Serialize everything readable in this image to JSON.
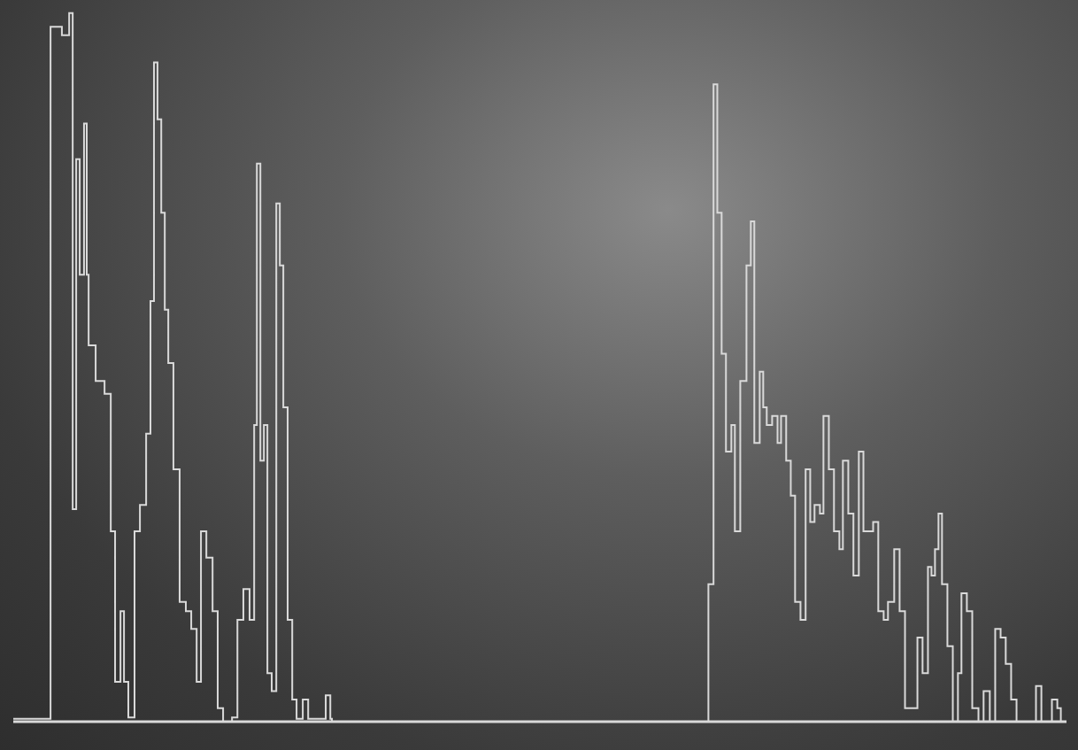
{
  "chart_data": {
    "type": "line",
    "line_style": "step",
    "color": "#d9d9d9",
    "grid": false,
    "tick_labels": false,
    "xlim": [
      0,
      39
    ],
    "ylim": [
      0,
      100
    ],
    "xticks": [
      2,
      3,
      4,
      5,
      6,
      7,
      8,
      9,
      10,
      11,
      12,
      13,
      14,
      15,
      16,
      17,
      18,
      19,
      20,
      21,
      22,
      23,
      24,
      25,
      26,
      27,
      28,
      29,
      30,
      31,
      32,
      33,
      34,
      35,
      36,
      37,
      38,
      39
    ],
    "x": [
      0,
      1.38,
      1.8,
      2.07,
      2.2,
      2.33,
      2.46,
      2.62,
      2.72,
      2.79,
      3.05,
      3.38,
      3.61,
      3.77,
      3.97,
      4.1,
      4.26,
      4.49,
      4.69,
      4.92,
      5.08,
      5.21,
      5.34,
      5.48,
      5.61,
      5.74,
      5.93,
      6.16,
      6.39,
      6.59,
      6.79,
      6.95,
      7.15,
      7.38,
      7.57,
      7.77,
      8.1,
      8.3,
      8.52,
      8.75,
      8.92,
      9.02,
      9.15,
      9.28,
      9.41,
      9.57,
      9.74,
      9.87,
      10,
      10.16,
      10.33,
      10.49,
      10.72,
      10.92,
      11.57,
      11.74,
      11.8,
      25.64,
      25.74,
      25.93,
      26.07,
      26.23,
      26.39,
      26.59,
      26.72,
      26.92,
      27.15,
      27.31,
      27.44,
      27.64,
      27.77,
      27.9,
      28.1,
      28.3,
      28.43,
      28.62,
      28.79,
      28.95,
      29.15,
      29.34,
      29.51,
      29.67,
      29.87,
      30,
      30.2,
      30.39,
      30.59,
      30.72,
      30.92,
      31.11,
      31.31,
      31.48,
      31.64,
      31.84,
      32.03,
      32.23,
      32.39,
      32.62,
      32.82,
      33.02,
      33.28,
      33.48,
      33.67,
      33.87,
      34,
      34.13,
      34.26,
      34.39,
      34.59,
      34.79,
      34.98,
      35.11,
      35.31,
      35.51,
      35.74,
      35.93,
      36.16,
      36.36,
      36.56,
      36.75,
      36.95,
      37.15,
      37.41,
      37.67,
      37.87,
      38.07,
      38.26,
      38.46,
      38.66,
      38.79,
      39
    ],
    "values": [
      0.4,
      97.5,
      96.3,
      99.4,
      29.8,
      78.9,
      62.7,
      83.9,
      62.7,
      52.8,
      47.8,
      46,
      26.7,
      5.6,
      15.5,
      5.6,
      0.6,
      26.7,
      30.4,
      40.4,
      59,
      92.5,
      84.5,
      71.4,
      57.8,
      50.3,
      35.4,
      16.8,
      15.5,
      13,
      5.6,
      26.7,
      23,
      15.5,
      1.9,
      0,
      0.6,
      14.3,
      18.6,
      14.3,
      41.6,
      78.3,
      36.6,
      41.6,
      6.8,
      4.3,
      72.7,
      64,
      44.1,
      14.3,
      3.1,
      0.4,
      3.1,
      0.4,
      3.7,
      0.4,
      0,
      0,
      19.3,
      89.4,
      71.4,
      51.6,
      37.9,
      41.6,
      26.7,
      47.8,
      64,
      70.2,
      39.1,
      49.1,
      44.1,
      41.6,
      42.9,
      39.1,
      42.9,
      36.6,
      31.7,
      16.8,
      14.3,
      35.4,
      28,
      30.4,
      29.2,
      42.9,
      35.4,
      26.7,
      24.2,
      36.6,
      29.2,
      20.5,
      37.9,
      26.7,
      26.7,
      28,
      15.5,
      14.3,
      16.8,
      24.2,
      15.5,
      1.9,
      1.9,
      11.8,
      6.8,
      21.7,
      20.5,
      24.2,
      29.2,
      19.3,
      10.6,
      0,
      6.8,
      18,
      15.5,
      1.9,
      0,
      4.3,
      0,
      13,
      11.8,
      8.1,
      3.1,
      0,
      0,
      0,
      5,
      0,
      0,
      3.1,
      1.9,
      0,
      0
    ]
  }
}
